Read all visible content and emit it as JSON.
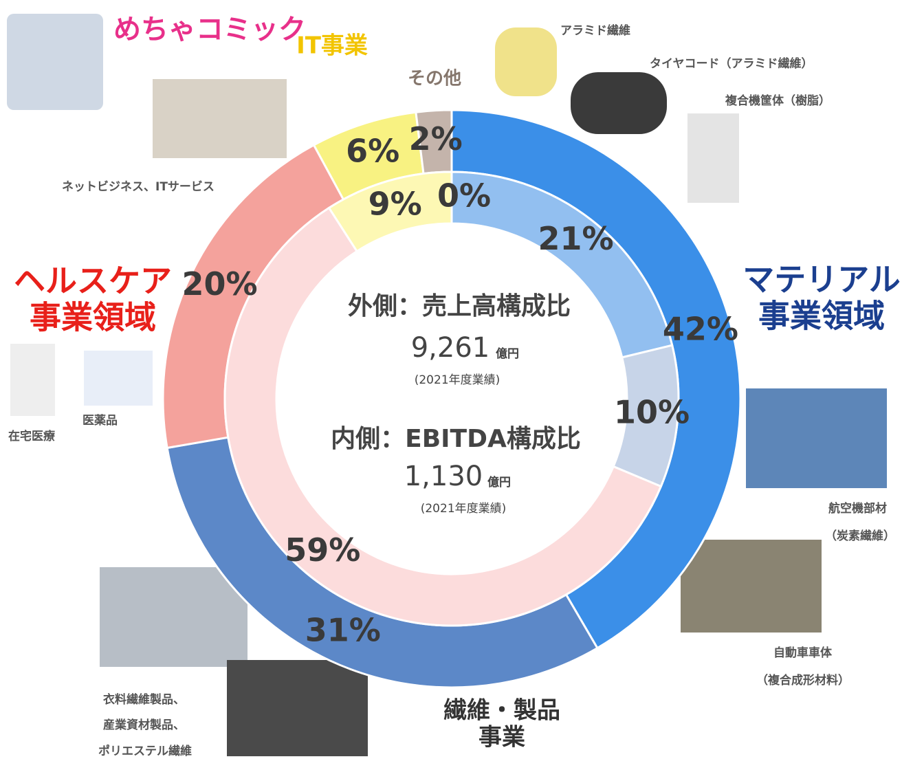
{
  "chart_data": {
    "type": "donut",
    "categories": [
      [
        "マテリアル",
        "事業領域"
      ],
      [
        "繊維・製品",
        "事業"
      ],
      [
        "ヘルスケア",
        "事業領域"
      ],
      [
        "IT事業"
      ],
      [
        "その他"
      ]
    ],
    "category_colors": [
      "#1b3f8f",
      "#333333",
      "#e8201a",
      "#f2c400",
      "#85766c"
    ],
    "outer": {
      "values": [
        42,
        31,
        20,
        6,
        2
      ],
      "value_labels": [
        "42%",
        "31%",
        "20%",
        "6%",
        "2%"
      ],
      "colors": [
        "#3b8fe8",
        "#5c88c8",
        "#f4a29c",
        "#f8f282",
        "#c4b4ab"
      ]
    },
    "inner": {
      "values": [
        21,
        10,
        59,
        9,
        0
      ],
      "value_labels": [
        "21%",
        "10%",
        "59%",
        "9%",
        "0%"
      ],
      "colors": [
        "#92bff0",
        "#c7d4e8",
        "#fcdcdc",
        "#fdf8b4",
        "#c4b4ab"
      ]
    },
    "center": {
      "outer_title": "外側：売上高構成比",
      "outer_total": "9,261",
      "unit": "億円",
      "outer_note": "(2021年度業績)",
      "inner_title": "内側：EBITDA構成比",
      "inner_total": "1,130",
      "inner_unit": "億円",
      "inner_note": "(2021年度業績)"
    },
    "captions": {
      "comic": "めちゃコミック",
      "net": "ネットビジネス、ITサービス",
      "aramid": "アラミド繊維",
      "tire": "タイヤコード（アラミド繊維）",
      "copier": "複合機筐体（樹脂）",
      "home": "在宅医療",
      "drug": "医薬品",
      "aircraft": [
        "航空機部材",
        "（炭素繊維）"
      ],
      "car": [
        "自動車車体",
        "（複合成形材料）"
      ],
      "fiber": [
        "衣料繊維製品、",
        "産業資材製品、",
        "ポリエステル繊維"
      ]
    }
  }
}
